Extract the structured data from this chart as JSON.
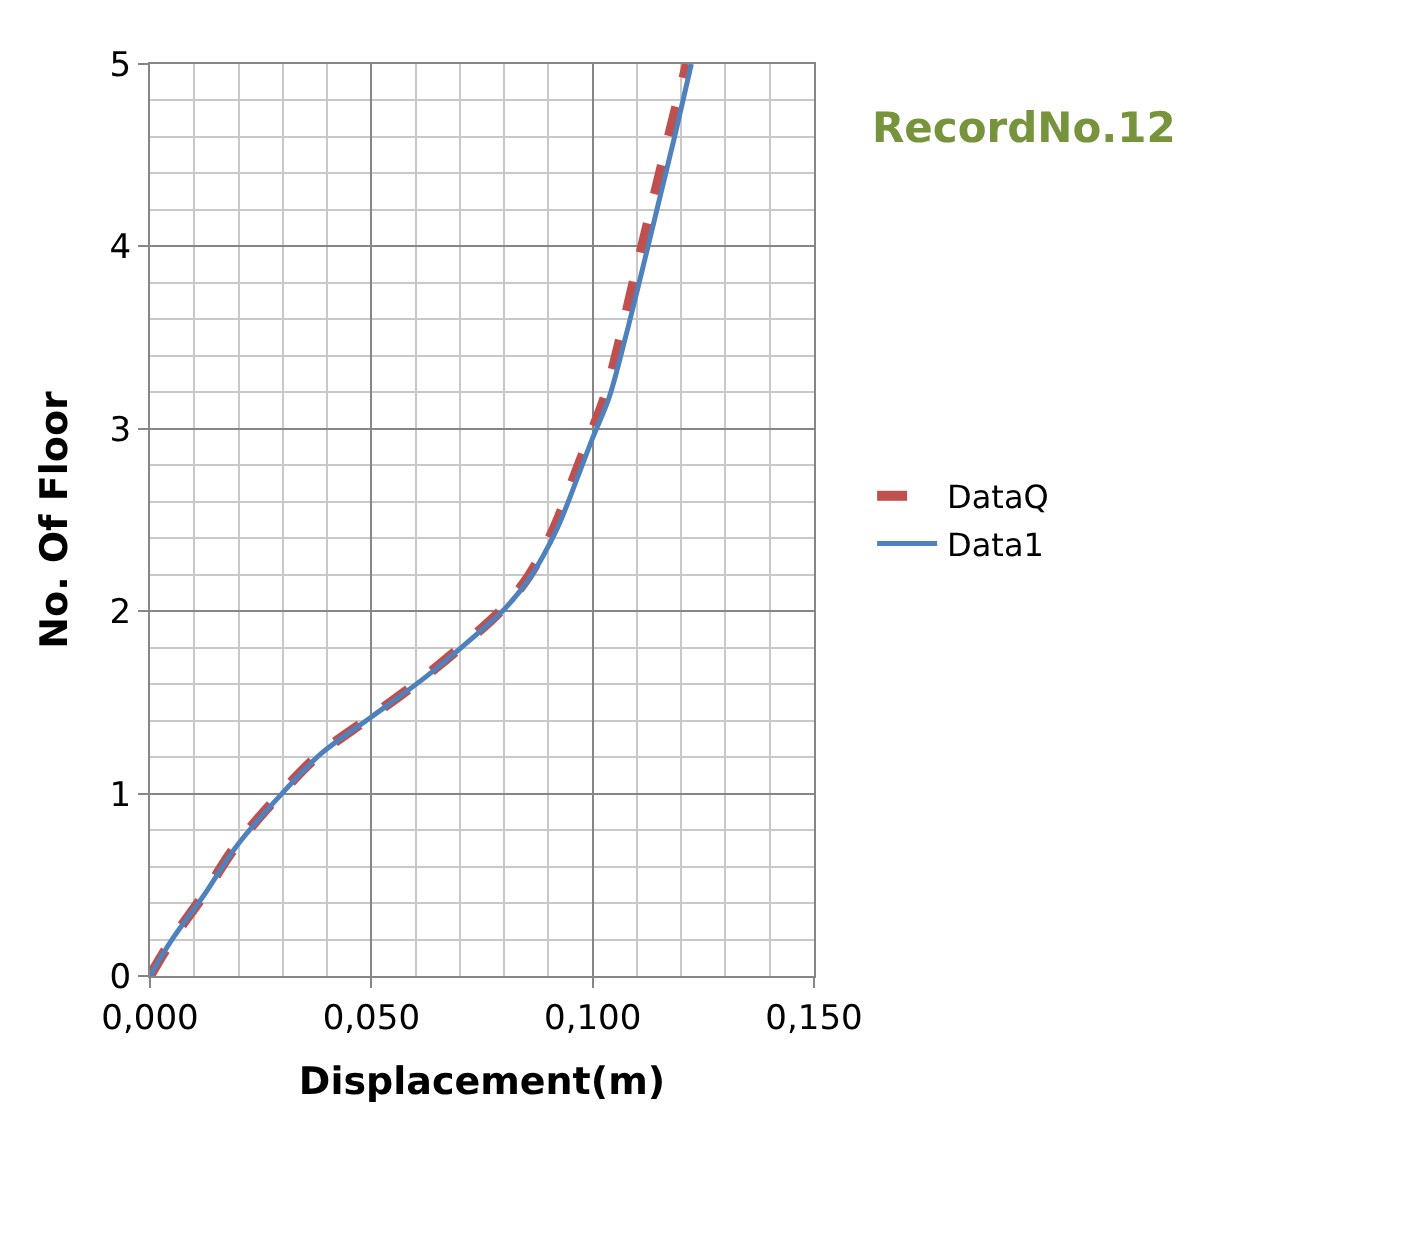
{
  "chart_data": {
    "type": "line",
    "title": "RecordNo.12",
    "xlabel": "Displacement(m)",
    "ylabel": "No. Of Floor",
    "xlim": [
      0,
      0.15
    ],
    "xticks": [
      {
        "value": 0,
        "label": "0,000"
      },
      {
        "value": 0.05,
        "label": "0,050"
      },
      {
        "value": 0.1,
        "label": "0,100"
      },
      {
        "value": 0.15,
        "label": "0,150"
      }
    ],
    "ylim": [
      0,
      5
    ],
    "yticks": [
      0,
      1,
      2,
      3,
      4,
      5
    ],
    "grid": true,
    "legend": "right",
    "marker": "none",
    "series": [
      {
        "name": "DataQ",
        "color": "#c0504d",
        "line_style": "dashed",
        "x": [
          0,
          0.0047,
          0.012,
          0.0193,
          0.0295,
          0.0385,
          0.0498,
          0.062,
          0.0738,
          0.0795,
          0.0855,
          0.0912,
          0.0962,
          0.0992,
          0.1027,
          0.1063,
          0.1098,
          0.1135,
          0.1172,
          0.1213
        ],
        "values": [
          0,
          0.19,
          0.44,
          0.71,
          1.0,
          1.22,
          1.42,
          1.64,
          1.88,
          2.01,
          2.19,
          2.45,
          2.76,
          2.95,
          3.17,
          3.5,
          3.86,
          4.23,
          4.6,
          5.0
        ]
      },
      {
        "name": "Data1",
        "color": "#4f81bd",
        "line_style": "solid",
        "x": [
          0,
          0.0047,
          0.0121,
          0.0195,
          0.0298,
          0.0387,
          0.05,
          0.0623,
          0.0741,
          0.08,
          0.086,
          0.0919,
          0.097,
          0.1,
          0.1037,
          0.1074,
          0.1111,
          0.1148,
          0.1185,
          0.1223
        ],
        "values": [
          0,
          0.19,
          0.44,
          0.71,
          1.0,
          1.22,
          1.42,
          1.64,
          1.88,
          2.01,
          2.19,
          2.45,
          2.76,
          2.95,
          3.17,
          3.5,
          3.86,
          4.23,
          4.6,
          5.0
        ]
      }
    ]
  }
}
